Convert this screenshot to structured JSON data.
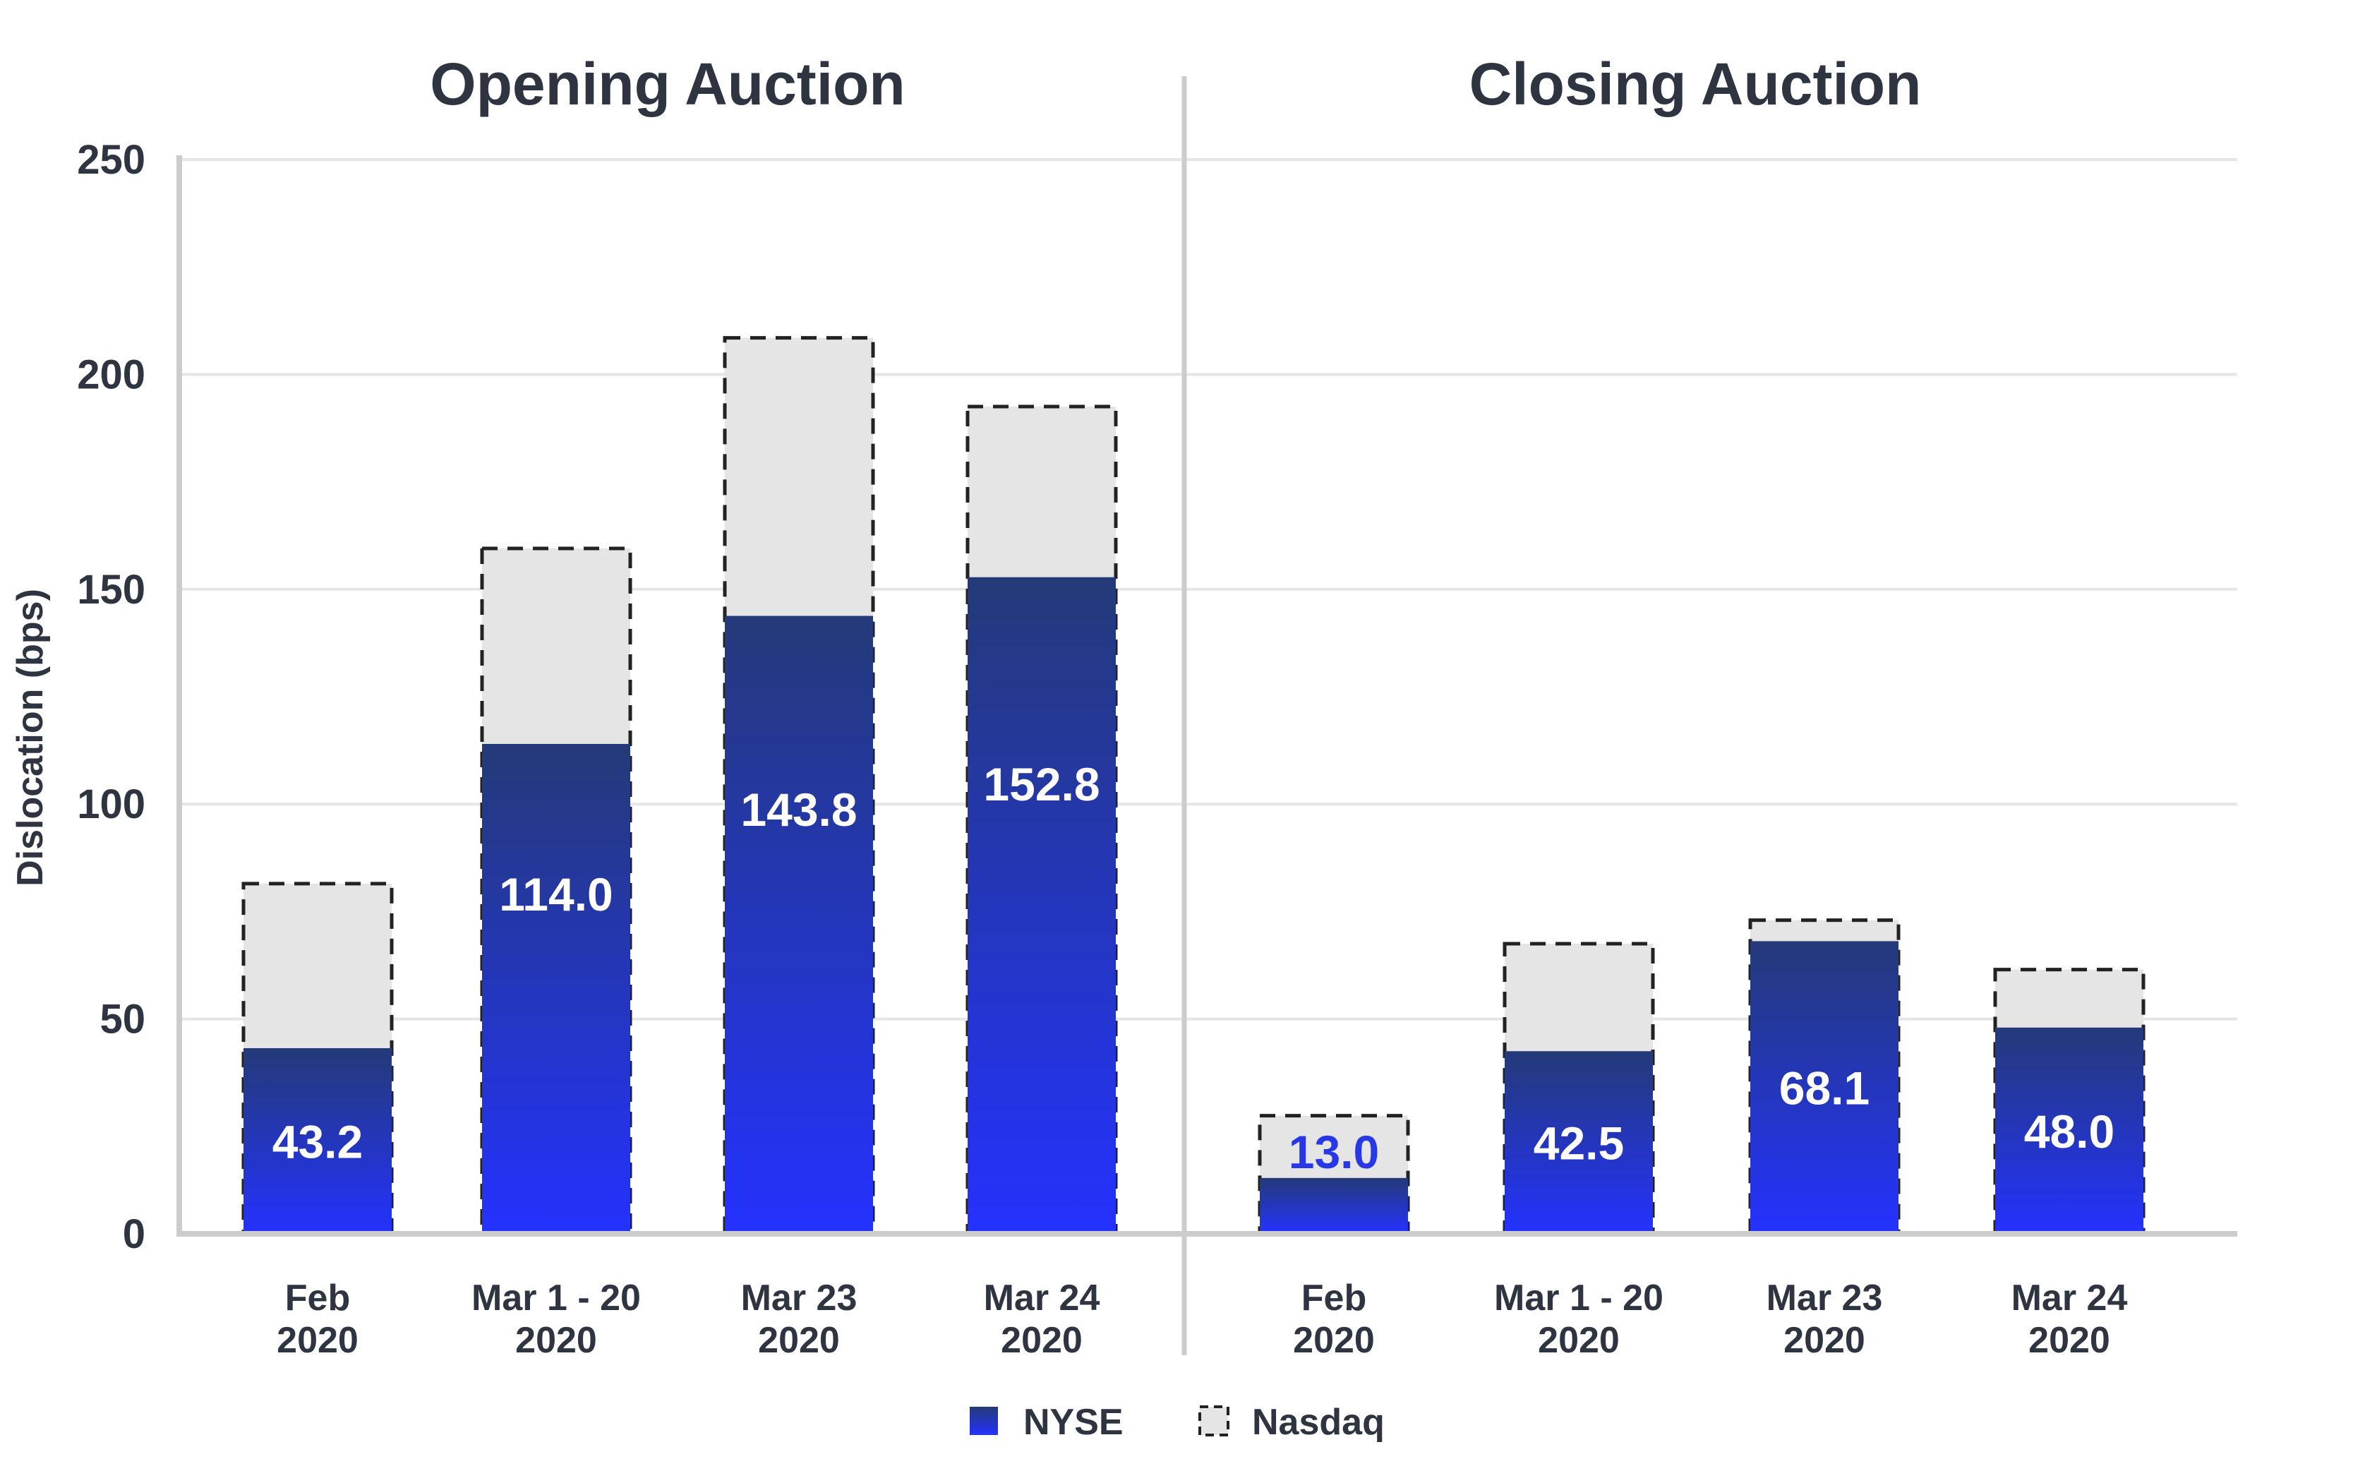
{
  "colors": {
    "nyse_top": "#243a78",
    "nyse_bottom": "#2432ff",
    "nasdaq_fill": "#e5e5e5",
    "nasdaq_border": "#222222",
    "grid": "#e6e6e6",
    "axis": "#cccccc",
    "text": "#2e3540"
  },
  "chart_data": {
    "type": "bar",
    "ylabel": "Dislocation (bps)",
    "ylim": [
      0,
      250
    ],
    "yticks": [
      "0",
      "50",
      "100",
      "150",
      "200",
      "250"
    ],
    "grid": true,
    "legend_position": "bottom-center",
    "legend": [
      {
        "name": "NYSE",
        "icon": "solid-square-icon"
      },
      {
        "name": "Nasdaq",
        "icon": "dashed-square-icon"
      }
    ],
    "panels": [
      {
        "title": "Opening Auction",
        "categories": [
          [
            "Feb",
            "2020"
          ],
          [
            "Mar 1 - 20",
            "2020"
          ],
          [
            "Mar 23",
            "2020"
          ],
          [
            "Mar 24",
            "2020"
          ]
        ],
        "series": [
          {
            "name": "NYSE",
            "values": [
              43.2,
              114.0,
              143.8,
              152.8
            ],
            "labels": [
              "43.2",
              "114.0",
              "143.8",
              "152.8"
            ]
          },
          {
            "name": "Nasdaq",
            "values": [
              81.5,
              159.5,
              208.5,
              192.5
            ]
          }
        ]
      },
      {
        "title": "Closing Auction",
        "categories": [
          [
            "Feb",
            "2020"
          ],
          [
            "Mar 1 - 20",
            "2020"
          ],
          [
            "Mar 23",
            "2020"
          ],
          [
            "Mar 24",
            "2020"
          ]
        ],
        "series": [
          {
            "name": "NYSE",
            "values": [
              13.0,
              42.5,
              68.1,
              48.0
            ],
            "labels": [
              "13.0",
              "42.5",
              "68.1",
              "48.0"
            ]
          },
          {
            "name": "Nasdaq",
            "values": [
              27.5,
              67.5,
              73.0,
              61.5
            ]
          }
        ]
      }
    ]
  }
}
